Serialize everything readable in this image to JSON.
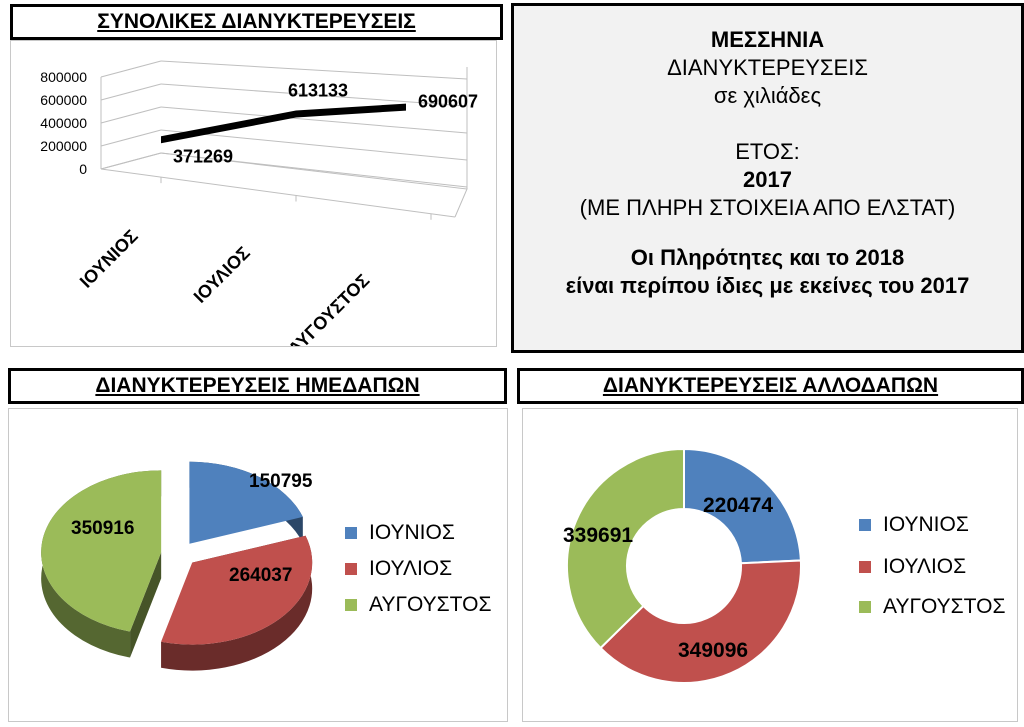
{
  "titles": {
    "totals": "ΣΥΝΟΛΙΚΕΣ ΔΙΑΝΥΚΤΕΡΕΥΣΕΙΣ",
    "domestic": "ΔΙΑΝΥΚΤΕΡΕΥΣΕΙΣ ΗΜΕΔΑΠΩΝ",
    "foreign": "ΔΙΑΝΥΚΤΕΡΕΥΣΕΙΣ ΑΛΛΟΔΑΠΩΝ"
  },
  "info": {
    "region": "ΜΕΣΣΗΝΙΑ",
    "line1": "ΔΙΑΝΥΚΤΕΡΕΥΣΕΙΣ",
    "line2": "σε χιλιάδες",
    "year_label": "ΕΤΟΣ:",
    "year": "2017",
    "source": "(ΜΕ ΠΛΗΡΗ ΣΤΟΙΧΕΙΑ ΑΠΟ ΕΛΣΤΑΤ)",
    "note1": "Οι Πληρότητες και το 2018",
    "note2": "είναι περίπου ίδιες με εκείνες του 2017"
  },
  "colors": {
    "june": "#4f81bd",
    "july": "#c0504d",
    "august": "#9bbb59",
    "line": "#000000"
  },
  "chart_data": [
    {
      "type": "line",
      "title": "ΣΥΝΟΛΙΚΕΣ ΔΙΑΝΥΚΤΕΡΕΥΣΕΙΣ",
      "categories": [
        "ΙΟΥΝΙΟΣ",
        "ΙΟΥΛΙΟΣ",
        "ΑΥΓΟΥΣΤΟΣ"
      ],
      "values": [
        371269,
        613133,
        690607
      ],
      "y_ticks": [
        "800000",
        "600000",
        "400000",
        "200000",
        "0"
      ],
      "ylim": [
        0,
        800000
      ],
      "grid": true,
      "style": "3d"
    },
    {
      "type": "pie",
      "title": "ΔΙΑΝΥΚΤΕΡΕΥΣΕΙΣ ΗΜΕΔΑΠΩΝ",
      "categories": [
        "ΙΟΥΝΙΟΣ",
        "ΙΟΥΛΙΟΣ",
        "ΑΥΓΟΥΣΤΟΣ"
      ],
      "values": [
        150795,
        264037,
        350916
      ],
      "labels": [
        "150795",
        "264037",
        "350916"
      ],
      "style": "3d-exploded",
      "legend": "right"
    },
    {
      "type": "pie",
      "title": "ΔΙΑΝΥΚΤΕΡΕΥΣΕΙΣ ΑΛΛΟΔΑΠΩΝ",
      "categories": [
        "ΙΟΥΝΙΟΣ",
        "ΙΟΥΛΙΟΣ",
        "ΑΥΓΟΥΣΤΟΣ"
      ],
      "values": [
        220474,
        349096,
        339691
      ],
      "labels": [
        "220474",
        "349096",
        "339691"
      ],
      "style": "doughnut",
      "legend": "right"
    }
  ]
}
